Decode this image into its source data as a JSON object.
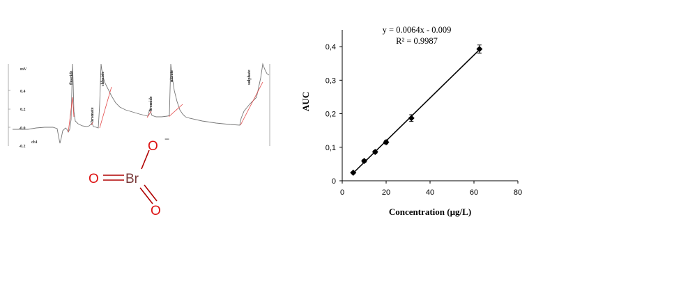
{
  "chromatogram": {
    "y_unit": "mV",
    "y_ticks": [
      "0.4",
      "0.2",
      "-0.0",
      "-0.2"
    ],
    "channel": "ch1",
    "peaks": [
      "fluoride",
      "bromate",
      "chloride",
      "bromide",
      "nitrate",
      "sulphate"
    ]
  },
  "molecule": {
    "central_atom": "Br",
    "oxygen": "O",
    "charge": "−",
    "bond_color": "#b00000",
    "oxygen_color": "#dd1111",
    "central_color": "#7a3a3a"
  },
  "chart_data": {
    "type": "scatter",
    "title": "",
    "xlabel": "Concentration (µg/L)",
    "ylabel": "AUC",
    "xlim": [
      0,
      80
    ],
    "ylim": [
      0,
      0.45
    ],
    "x_ticks": [
      "0",
      "20",
      "40",
      "60",
      "80"
    ],
    "y_ticks": [
      "0",
      "0,1",
      "0,2",
      "0,3",
      "0,4"
    ],
    "points": [
      {
        "x": 5,
        "y": 0.024,
        "err": 0.003
      },
      {
        "x": 10,
        "y": 0.059,
        "err": 0.004
      },
      {
        "x": 15,
        "y": 0.086,
        "err": 0.004
      },
      {
        "x": 20,
        "y": 0.115,
        "err": 0.005
      },
      {
        "x": 31.5,
        "y": 0.187,
        "err": 0.01
      },
      {
        "x": 62.5,
        "y": 0.393,
        "err": 0.012
      }
    ],
    "trendline": {
      "slope": 0.0064,
      "intercept": -0.009,
      "x_range": [
        4.5,
        63
      ]
    },
    "equation": "y = 0.0064x - 0.009",
    "r_squared": "R² = 0.9987",
    "grid": false,
    "legend": "none"
  }
}
